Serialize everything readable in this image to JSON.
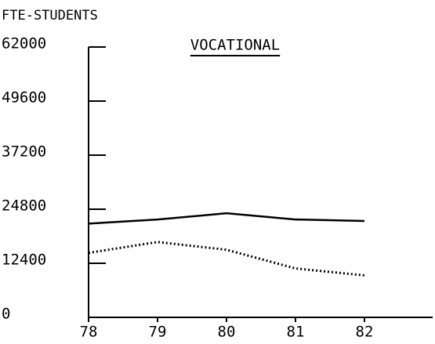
{
  "chart_data": {
    "type": "line",
    "title": "VOCATIONAL",
    "y_label": "FTE-STUDENTS",
    "x": [
      78,
      79,
      80,
      81,
      82
    ],
    "series": [
      {
        "color": "#000000",
        "style": "solid",
        "values": [
          21500,
          22450,
          23870,
          22450,
          22100
        ]
      },
      {
        "color": "#000000",
        "style": "dotted",
        "values": [
          14790,
          17280,
          15500,
          11220,
          9620
        ]
      }
    ],
    "xlim": [
      78,
      83
    ],
    "xticks": [
      78,
      79,
      80,
      81,
      82
    ],
    "ylim": [
      0,
      62000
    ],
    "yticks": [
      0,
      12400,
      24800,
      37200,
      49600,
      62000
    ]
  }
}
